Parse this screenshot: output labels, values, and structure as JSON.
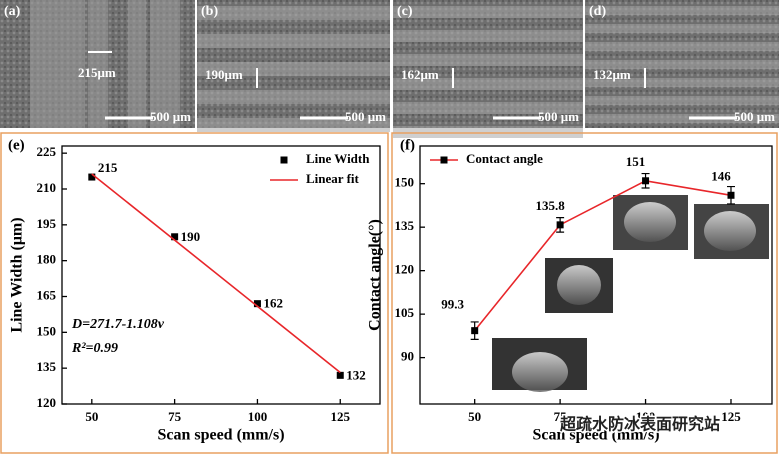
{
  "panels": [
    {
      "label": "(a)",
      "measure": "215μm",
      "scale": "500 μm"
    },
    {
      "label": "(b)",
      "measure": "190μm",
      "scale": "500 μm"
    },
    {
      "label": "(c)",
      "measure": "162μm",
      "scale": "500 μm"
    },
    {
      "label": "(d)",
      "measure": "132μm",
      "scale": "500 μm"
    }
  ],
  "chart_data": [
    {
      "type": "line",
      "panel_label": "(e)",
      "x_label": "Scan speed (mm/s)",
      "y_label": "Line Width (μm)",
      "series": [
        {
          "name": "Line Width",
          "color": "#000000",
          "marker": "square",
          "line": false,
          "x": [
            50,
            75,
            100,
            125
          ],
          "values": [
            215,
            190,
            162,
            132
          ]
        },
        {
          "name": "Linear fit",
          "color": "#e8262a",
          "marker": "none",
          "line": true,
          "x": [
            50,
            125
          ],
          "values": [
            216.3,
            133.2
          ]
        }
      ],
      "annotations": [
        "D=271.7-1.108v",
        "R²=0.99"
      ],
      "xlim": [
        41,
        137
      ],
      "ylim": [
        120,
        228
      ],
      "xticks": [
        50,
        75,
        100,
        125
      ],
      "yticks": [
        120,
        135,
        150,
        165,
        180,
        195,
        210,
        225
      ],
      "legend": "top-right"
    },
    {
      "type": "line",
      "panel_label": "(f)",
      "x_label": "Scan speed (mm/s)",
      "y_label": "Contact angle(°)",
      "series": [
        {
          "name": "Contact angle",
          "color": "#e8262a",
          "marker": "square",
          "line": true,
          "x": [
            50,
            75,
            100,
            125
          ],
          "values": [
            99.3,
            135.8,
            151,
            146
          ],
          "errors": [
            3,
            2.5,
            2.5,
            3
          ]
        }
      ],
      "xlim": [
        34,
        137
      ],
      "ylim": [
        74,
        163
      ],
      "xticks": [
        50,
        75,
        100,
        125
      ],
      "yticks": [
        90,
        105,
        120,
        135,
        150
      ],
      "legend": "top-left"
    }
  ],
  "watermark": "超疏水防冰表面研究站"
}
